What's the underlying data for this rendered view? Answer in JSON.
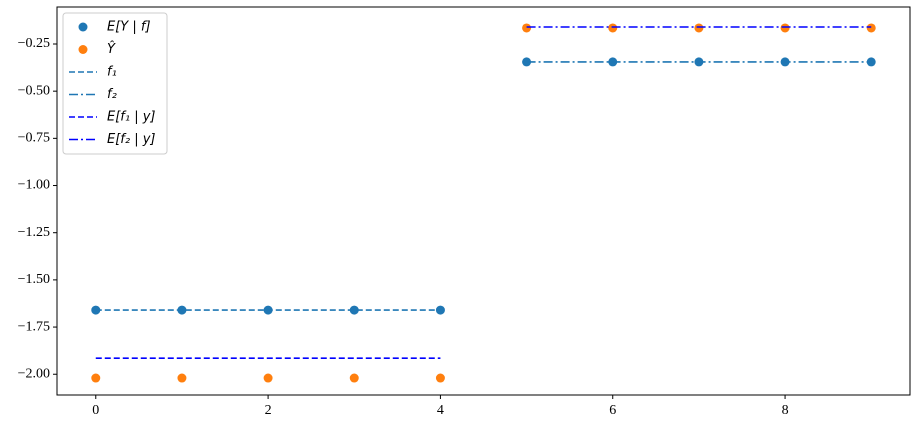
{
  "chart_data": {
    "type": "scatter",
    "series": [
      {
        "name": "E[Y | f]",
        "type": "scatter",
        "color": "#1f77b4",
        "x": [
          0,
          1,
          2,
          3,
          4,
          5,
          6,
          7,
          8,
          9
        ],
        "values": [
          -1.66,
          -1.66,
          -1.66,
          -1.66,
          -1.66,
          -0.345,
          -0.345,
          -0.345,
          -0.345,
          -0.345
        ]
      },
      {
        "name": "Ŷ",
        "type": "scatter",
        "color": "#ff7f0e",
        "x": [
          0,
          1,
          2,
          3,
          4,
          5,
          6,
          7,
          8,
          9
        ],
        "values": [
          -2.02,
          -2.02,
          -2.02,
          -2.02,
          -2.02,
          -0.165,
          -0.165,
          -0.165,
          -0.165,
          -0.165
        ]
      },
      {
        "name": "f₁",
        "type": "line",
        "dash": "dashed",
        "color": "#1f77b4",
        "x": [
          0,
          4
        ],
        "values": [
          -1.66,
          -1.66
        ]
      },
      {
        "name": "f₂",
        "type": "line",
        "dash": "dashdot",
        "color": "#1f77b4",
        "x": [
          5,
          9
        ],
        "values": [
          -0.345,
          -0.345
        ]
      },
      {
        "name": "E[f₁ | y]",
        "type": "line",
        "dash": "dashed",
        "color": "#0000ff",
        "x": [
          0,
          4
        ],
        "values": [
          -1.915,
          -1.915
        ]
      },
      {
        "name": "E[f₂ | y]",
        "type": "line",
        "dash": "dashdot",
        "color": "#0000ff",
        "x": [
          5,
          9
        ],
        "values": [
          -0.16,
          -0.16
        ]
      }
    ],
    "xlim": [
      -0.45,
      9.45
    ],
    "ylim": [
      -2.11,
      -0.054
    ],
    "xticks": [
      0,
      2,
      4,
      6,
      8
    ],
    "yticks": [
      {
        "value": -2.0,
        "label": "−2.00"
      },
      {
        "value": -1.75,
        "label": "−1.75"
      },
      {
        "value": -1.5,
        "label": "−1.50"
      },
      {
        "value": -1.25,
        "label": "−1.25"
      },
      {
        "value": -1.0,
        "label": "−1.00"
      },
      {
        "value": -0.75,
        "label": "−0.75"
      },
      {
        "value": -0.5,
        "label": "−0.50"
      },
      {
        "value": -0.25,
        "label": "−0.25"
      }
    ],
    "legend": "upper left"
  }
}
